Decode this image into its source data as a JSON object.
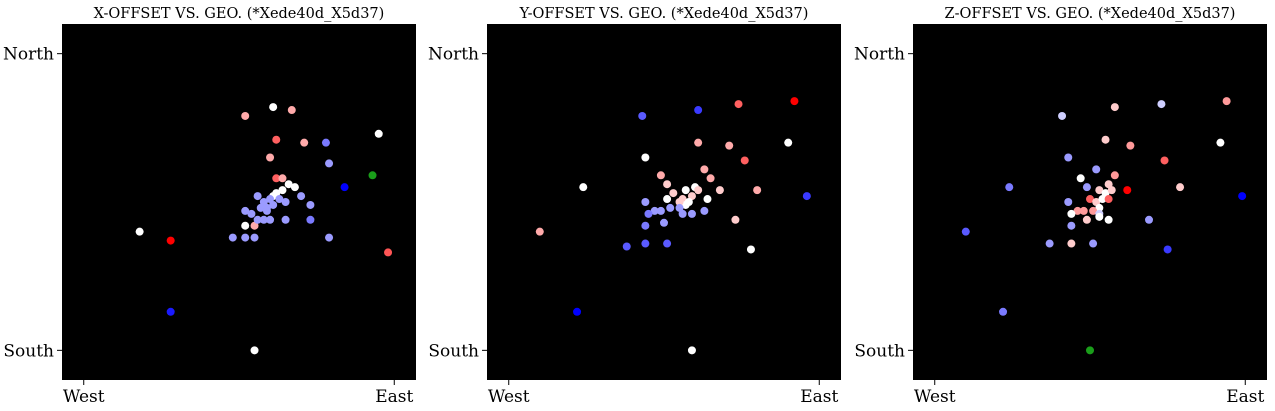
{
  "chart_data": [
    {
      "type": "scatter",
      "title": "X-OFFSET VS. GEO. (*Xede40d_X5d37)",
      "background": "#000000",
      "x_ticks": [
        "West",
        "East"
      ],
      "y_ticks": [
        "North",
        "South"
      ],
      "xlim": [
        -0.07,
        1.07
      ],
      "ylim": [
        -0.1,
        1.1
      ],
      "points": [
        {
          "x": 0.28,
          "y": 0.37,
          "c": "#ff0000"
        },
        {
          "x": 0.61,
          "y": 0.82,
          "c": "#ffffff"
        },
        {
          "x": 0.78,
          "y": 0.7,
          "c": "#7a7aff"
        },
        {
          "x": 0.95,
          "y": 0.73,
          "c": "#ffffff"
        },
        {
          "x": 0.93,
          "y": 0.59,
          "c": "#1a9e1a"
        },
        {
          "x": 0.98,
          "y": 0.33,
          "c": "#ff5555"
        },
        {
          "x": 0.18,
          "y": 0.4,
          "c": "#ffffff"
        },
        {
          "x": 0.28,
          "y": 0.13,
          "c": "#1a1aff"
        },
        {
          "x": 0.55,
          "y": 0.0,
          "c": "#ffffff"
        },
        {
          "x": 0.52,
          "y": 0.79,
          "c": "#ffaaaa"
        },
        {
          "x": 0.67,
          "y": 0.81,
          "c": "#ffaaaa"
        },
        {
          "x": 0.62,
          "y": 0.71,
          "c": "#ff6060"
        },
        {
          "x": 0.71,
          "y": 0.7,
          "c": "#ffaaaa"
        },
        {
          "x": 0.6,
          "y": 0.65,
          "c": "#ffaaaa"
        },
        {
          "x": 0.62,
          "y": 0.58,
          "c": "#ff6060"
        },
        {
          "x": 0.64,
          "y": 0.58,
          "c": "#ffaaaa"
        },
        {
          "x": 0.64,
          "y": 0.54,
          "c": "#ffffff"
        },
        {
          "x": 0.62,
          "y": 0.53,
          "c": "#ffffff"
        },
        {
          "x": 0.61,
          "y": 0.52,
          "c": "#ffffff"
        },
        {
          "x": 0.66,
          "y": 0.56,
          "c": "#ffffff"
        },
        {
          "x": 0.68,
          "y": 0.55,
          "c": "#ffffff"
        },
        {
          "x": 0.7,
          "y": 0.52,
          "c": "#9b9bff"
        },
        {
          "x": 0.73,
          "y": 0.49,
          "c": "#9b9bff"
        },
        {
          "x": 0.79,
          "y": 0.63,
          "c": "#9b9bff"
        },
        {
          "x": 0.84,
          "y": 0.55,
          "c": "#0000ff"
        },
        {
          "x": 0.73,
          "y": 0.44,
          "c": "#7a7aff"
        },
        {
          "x": 0.79,
          "y": 0.38,
          "c": "#9b9bff"
        },
        {
          "x": 0.48,
          "y": 0.38,
          "c": "#9b9bff"
        },
        {
          "x": 0.52,
          "y": 0.38,
          "c": "#9b9bff"
        },
        {
          "x": 0.55,
          "y": 0.38,
          "c": "#9b9bff"
        },
        {
          "x": 0.52,
          "y": 0.42,
          "c": "#ffffff"
        },
        {
          "x": 0.55,
          "y": 0.42,
          "c": "#ffaaaa"
        },
        {
          "x": 0.58,
          "y": 0.44,
          "c": "#9b9bff"
        },
        {
          "x": 0.6,
          "y": 0.44,
          "c": "#9b9bff"
        },
        {
          "x": 0.54,
          "y": 0.46,
          "c": "#9b9bff"
        },
        {
          "x": 0.57,
          "y": 0.48,
          "c": "#9b9bff"
        },
        {
          "x": 0.59,
          "y": 0.48,
          "c": "#9b9bff"
        },
        {
          "x": 0.61,
          "y": 0.49,
          "c": "#9b9bff"
        },
        {
          "x": 0.63,
          "y": 0.51,
          "c": "#9b9bff"
        },
        {
          "x": 0.65,
          "y": 0.5,
          "c": "#9b9bff"
        },
        {
          "x": 0.6,
          "y": 0.51,
          "c": "#9b9bff"
        },
        {
          "x": 0.52,
          "y": 0.47,
          "c": "#9b9bff"
        },
        {
          "x": 0.56,
          "y": 0.52,
          "c": "#9b9bff"
        },
        {
          "x": 0.65,
          "y": 0.44,
          "c": "#9b9bff"
        },
        {
          "x": 0.58,
          "y": 0.5,
          "c": "#9b9bff"
        },
        {
          "x": 0.56,
          "y": 0.44,
          "c": "#9b9bff"
        },
        {
          "x": 0.59,
          "y": 0.47,
          "c": "#9b9bff"
        }
      ]
    },
    {
      "type": "scatter",
      "title": "Y-OFFSET VS. GEO. (*Xede40d_X5d37)",
      "background": "#000000",
      "x_ticks": [
        "West",
        "East"
      ],
      "y_ticks": [
        "North",
        "South"
      ],
      "xlim": [
        -0.07,
        1.07
      ],
      "ylim": [
        -0.1,
        1.1
      ],
      "points": [
        {
          "x": 0.24,
          "y": 0.55,
          "c": "#ffffff"
        },
        {
          "x": 0.61,
          "y": 0.81,
          "c": "#3a3aff"
        },
        {
          "x": 0.43,
          "y": 0.79,
          "c": "#5a5aff"
        },
        {
          "x": 0.74,
          "y": 0.83,
          "c": "#ff6060"
        },
        {
          "x": 0.92,
          "y": 0.84,
          "c": "#ff0000"
        },
        {
          "x": 0.9,
          "y": 0.7,
          "c": "#ffffff"
        },
        {
          "x": 0.96,
          "y": 0.52,
          "c": "#3a3aff"
        },
        {
          "x": 0.1,
          "y": 0.4,
          "c": "#ffaaaa"
        },
        {
          "x": 0.22,
          "y": 0.13,
          "c": "#0000ff"
        },
        {
          "x": 0.59,
          "y": 0.0,
          "c": "#ffffff"
        },
        {
          "x": 0.44,
          "y": 0.65,
          "c": "#ffffff"
        },
        {
          "x": 0.61,
          "y": 0.7,
          "c": "#ffaaaa"
        },
        {
          "x": 0.71,
          "y": 0.69,
          "c": "#ffaaaa"
        },
        {
          "x": 0.76,
          "y": 0.64,
          "c": "#ff6060"
        },
        {
          "x": 0.49,
          "y": 0.59,
          "c": "#ffaaaa"
        },
        {
          "x": 0.63,
          "y": 0.61,
          "c": "#ffaaaa"
        },
        {
          "x": 0.65,
          "y": 0.58,
          "c": "#ffaaaa"
        },
        {
          "x": 0.51,
          "y": 0.56,
          "c": "#ffcccc"
        },
        {
          "x": 0.53,
          "y": 0.53,
          "c": "#ffcccc"
        },
        {
          "x": 0.57,
          "y": 0.54,
          "c": "#ffffff"
        },
        {
          "x": 0.6,
          "y": 0.55,
          "c": "#ffffff"
        },
        {
          "x": 0.61,
          "y": 0.54,
          "c": "#ffcccc"
        },
        {
          "x": 0.68,
          "y": 0.54,
          "c": "#ffcccc"
        },
        {
          "x": 0.8,
          "y": 0.54,
          "c": "#ffaaaa"
        },
        {
          "x": 0.64,
          "y": 0.51,
          "c": "#ffffff"
        },
        {
          "x": 0.59,
          "y": 0.52,
          "c": "#ffcccc"
        },
        {
          "x": 0.56,
          "y": 0.51,
          "c": "#ffcccc"
        },
        {
          "x": 0.57,
          "y": 0.49,
          "c": "#ffffff"
        },
        {
          "x": 0.58,
          "y": 0.5,
          "c": "#ffffff"
        },
        {
          "x": 0.55,
          "y": 0.5,
          "c": "#ffcccc"
        },
        {
          "x": 0.51,
          "y": 0.51,
          "c": "#ffffff"
        },
        {
          "x": 0.44,
          "y": 0.5,
          "c": "#9b9bff"
        },
        {
          "x": 0.47,
          "y": 0.47,
          "c": "#9b9bff"
        },
        {
          "x": 0.49,
          "y": 0.47,
          "c": "#9b9bff"
        },
        {
          "x": 0.52,
          "y": 0.48,
          "c": "#9b9bff"
        },
        {
          "x": 0.55,
          "y": 0.48,
          "c": "#9b9bff"
        },
        {
          "x": 0.56,
          "y": 0.46,
          "c": "#9b9bff"
        },
        {
          "x": 0.59,
          "y": 0.46,
          "c": "#9b9bff"
        },
        {
          "x": 0.63,
          "y": 0.47,
          "c": "#9b9bff"
        },
        {
          "x": 0.73,
          "y": 0.44,
          "c": "#ffcccc"
        },
        {
          "x": 0.45,
          "y": 0.46,
          "c": "#7a7aff"
        },
        {
          "x": 0.44,
          "y": 0.42,
          "c": "#7a7aff"
        },
        {
          "x": 0.5,
          "y": 0.43,
          "c": "#9b9bff"
        },
        {
          "x": 0.38,
          "y": 0.35,
          "c": "#5a5aff"
        },
        {
          "x": 0.44,
          "y": 0.36,
          "c": "#5a5aff"
        },
        {
          "x": 0.51,
          "y": 0.36,
          "c": "#5a5aff"
        },
        {
          "x": 0.78,
          "y": 0.34,
          "c": "#ffffff"
        }
      ]
    },
    {
      "type": "scatter",
      "title": "Z-OFFSET VS. GEO. (*Xede40d_X5d37)",
      "background": "#000000",
      "x_ticks": [
        "West",
        "East"
      ],
      "y_ticks": [
        "North",
        "South"
      ],
      "xlim": [
        -0.07,
        1.07
      ],
      "ylim": [
        -0.1,
        1.1
      ],
      "points": [
        {
          "x": 0.24,
          "y": 0.55,
          "c": "#7a7aff"
        },
        {
          "x": 0.41,
          "y": 0.79,
          "c": "#cfcfff"
        },
        {
          "x": 0.58,
          "y": 0.82,
          "c": "#ffcccc"
        },
        {
          "x": 0.73,
          "y": 0.83,
          "c": "#cfcfff"
        },
        {
          "x": 0.94,
          "y": 0.84,
          "c": "#ff9a9a"
        },
        {
          "x": 0.92,
          "y": 0.7,
          "c": "#ffffff"
        },
        {
          "x": 0.99,
          "y": 0.52,
          "c": "#0000ff"
        },
        {
          "x": 0.1,
          "y": 0.4,
          "c": "#5a5aff"
        },
        {
          "x": 0.22,
          "y": 0.13,
          "c": "#7a7aff"
        },
        {
          "x": 0.5,
          "y": 0.0,
          "c": "#1a9e1a"
        },
        {
          "x": 0.43,
          "y": 0.65,
          "c": "#9b9bff"
        },
        {
          "x": 0.55,
          "y": 0.71,
          "c": "#ffcccc"
        },
        {
          "x": 0.63,
          "y": 0.69,
          "c": "#ff9a9a"
        },
        {
          "x": 0.74,
          "y": 0.64,
          "c": "#ff6060"
        },
        {
          "x": 0.79,
          "y": 0.55,
          "c": "#ffcccc"
        },
        {
          "x": 0.52,
          "y": 0.61,
          "c": "#9b9bff"
        },
        {
          "x": 0.47,
          "y": 0.58,
          "c": "#ffffff"
        },
        {
          "x": 0.58,
          "y": 0.59,
          "c": "#ff9a9a"
        },
        {
          "x": 0.56,
          "y": 0.56,
          "c": "#ffcccc"
        },
        {
          "x": 0.49,
          "y": 0.55,
          "c": "#9b9bff"
        },
        {
          "x": 0.53,
          "y": 0.54,
          "c": "#ffcccc"
        },
        {
          "x": 0.55,
          "y": 0.53,
          "c": "#ffffff"
        },
        {
          "x": 0.57,
          "y": 0.54,
          "c": "#ffcccc"
        },
        {
          "x": 0.62,
          "y": 0.54,
          "c": "#ff0000"
        },
        {
          "x": 0.5,
          "y": 0.51,
          "c": "#ff6060"
        },
        {
          "x": 0.52,
          "y": 0.5,
          "c": "#ffcccc"
        },
        {
          "x": 0.54,
          "y": 0.51,
          "c": "#ffffff"
        },
        {
          "x": 0.56,
          "y": 0.51,
          "c": "#ff6060"
        },
        {
          "x": 0.53,
          "y": 0.48,
          "c": "#ffffff"
        },
        {
          "x": 0.43,
          "y": 0.5,
          "c": "#9b9bff"
        },
        {
          "x": 0.46,
          "y": 0.47,
          "c": "#ff9a9a"
        },
        {
          "x": 0.48,
          "y": 0.47,
          "c": "#ff9a9a"
        },
        {
          "x": 0.51,
          "y": 0.47,
          "c": "#ff9a9a"
        },
        {
          "x": 0.53,
          "y": 0.46,
          "c": "#cfcfff"
        },
        {
          "x": 0.44,
          "y": 0.46,
          "c": "#ffffff"
        },
        {
          "x": 0.49,
          "y": 0.44,
          "c": "#ffcccc"
        },
        {
          "x": 0.53,
          "y": 0.45,
          "c": "#ffffff"
        },
        {
          "x": 0.56,
          "y": 0.44,
          "c": "#ffffff"
        },
        {
          "x": 0.44,
          "y": 0.42,
          "c": "#9b9bff"
        },
        {
          "x": 0.69,
          "y": 0.44,
          "c": "#9b9bff"
        },
        {
          "x": 0.37,
          "y": 0.36,
          "c": "#9b9bff"
        },
        {
          "x": 0.44,
          "y": 0.36,
          "c": "#ffcccc"
        },
        {
          "x": 0.51,
          "y": 0.36,
          "c": "#9b9bff"
        },
        {
          "x": 0.75,
          "y": 0.34,
          "c": "#3a3aff"
        }
      ]
    }
  ]
}
